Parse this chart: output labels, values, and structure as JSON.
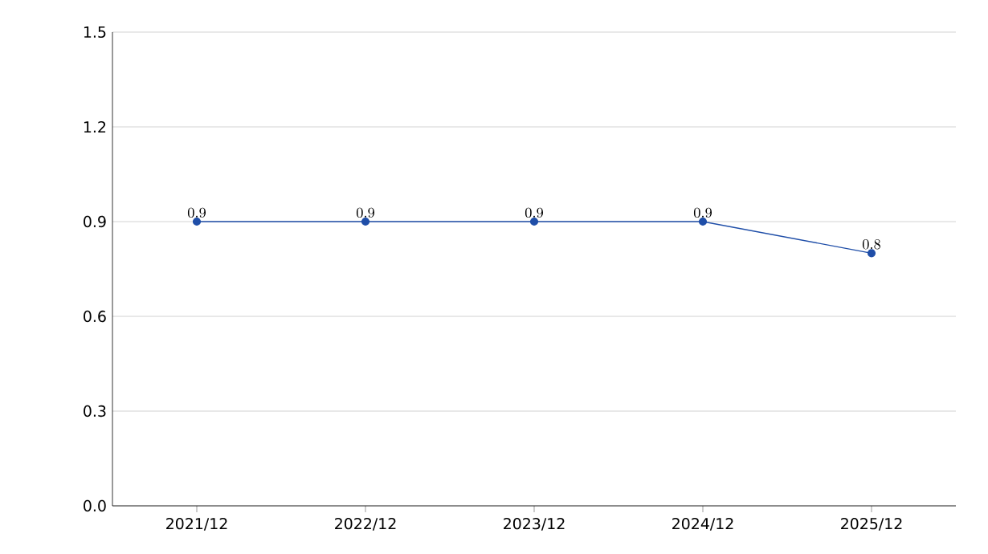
{
  "chart_data": {
    "type": "line",
    "categories": [
      "2021/12",
      "2022/12",
      "2023/12",
      "2024/12",
      "2025/12"
    ],
    "values": [
      0.9,
      0.9,
      0.9,
      0.9,
      0.8
    ],
    "color": "#1f4ea8",
    "ylim": [
      0,
      1.5
    ],
    "yticks": [
      {
        "value": 0,
        "label": "0.0"
      },
      0.3,
      0.6,
      0.9,
      1.2,
      1.5
    ],
    "grid": "y",
    "marker": "circle",
    "line_style": "solid",
    "data_labels": true
  }
}
